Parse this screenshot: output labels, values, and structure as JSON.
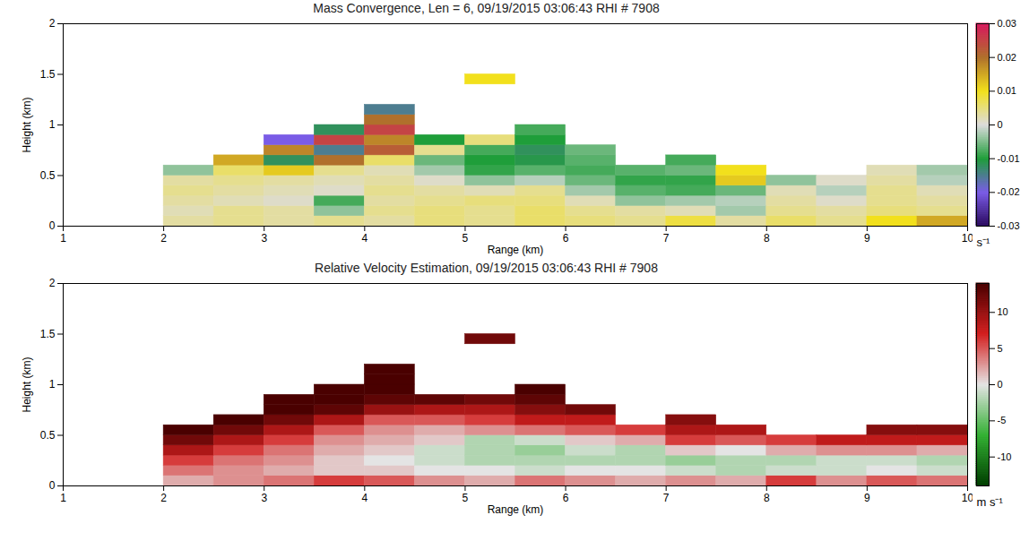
{
  "chart_data": [
    {
      "type": "heatmap",
      "title": "Mass Convergence, Len = 6, 09/19/2015 03:06:43 RHI # 7908",
      "x_label": "Range (km)",
      "y_label": "Height (km)",
      "xlim": [
        1,
        10
      ],
      "xticks": [
        1,
        2,
        3,
        4,
        5,
        6,
        7,
        8,
        9,
        10
      ],
      "ylim": [
        0,
        2
      ],
      "yticks": [
        0,
        0.5,
        1,
        1.5,
        2
      ],
      "x_edges": [
        2,
        2.5,
        3,
        3.5,
        4,
        4.5,
        5,
        5.5,
        6,
        6.5,
        7,
        7.5,
        8,
        8.5,
        9,
        9.5,
        10
      ],
      "y_edges": [
        0,
        0.1,
        0.2,
        0.3,
        0.4,
        0.5,
        0.6,
        0.7,
        0.8,
        0.9,
        1.0,
        1.1,
        1.2,
        1.3,
        1.4,
        1.5
      ],
      "cells": [
        [
          0.003,
          0.004,
          0.003,
          0.004,
          0.003,
          0.005,
          0.004,
          0.006,
          0.005,
          0.004,
          0.008,
          0.003,
          0.006,
          0.004,
          0.01,
          0.015
        ],
        [
          0.002,
          0.004,
          0.003,
          -0.004,
          0.004,
          0.005,
          0.004,
          0.006,
          0.004,
          0.003,
          0.002,
          -0.003,
          0.004,
          0.003,
          0.005,
          0.004
        ],
        [
          0.003,
          0.002,
          0.001,
          -0.008,
          0.003,
          0.004,
          0.005,
          0.005,
          0.002,
          -0.004,
          -0.003,
          -0.002,
          0.003,
          0.001,
          0.004,
          0.003
        ],
        [
          0.004,
          0.003,
          0.002,
          0.001,
          0.004,
          0.003,
          0.002,
          0.004,
          -0.003,
          -0.007,
          -0.008,
          -0.006,
          0.002,
          -0.002,
          0.004,
          0.002
        ],
        [
          0.003,
          0.004,
          0.003,
          0.002,
          0.003,
          0.001,
          -0.004,
          -0.002,
          -0.006,
          -0.009,
          -0.009,
          0.012,
          -0.004,
          0.001,
          0.003,
          -0.002
        ],
        [
          -0.004,
          0.006,
          0.012,
          0.004,
          0.002,
          -0.003,
          -0.009,
          -0.007,
          -0.008,
          -0.007,
          -0.006,
          0.01,
          null,
          null,
          0.002,
          -0.003
        ],
        [
          null,
          0.015,
          -0.012,
          0.02,
          0.006,
          -0.006,
          -0.01,
          -0.011,
          -0.007,
          null,
          -0.008,
          null,
          null,
          null,
          null,
          null
        ],
        [
          null,
          null,
          0.018,
          -0.015,
          0.022,
          0.004,
          -0.008,
          -0.012,
          -0.006,
          null,
          null,
          null,
          null,
          null,
          null,
          null
        ],
        [
          null,
          null,
          -0.02,
          0.025,
          0.018,
          -0.01,
          0.005,
          -0.01,
          null,
          null,
          null,
          null,
          null,
          null,
          null,
          null
        ],
        [
          null,
          null,
          null,
          -0.012,
          0.025,
          null,
          null,
          -0.008,
          null,
          null,
          null,
          null,
          null,
          null,
          null,
          null
        ],
        [
          null,
          null,
          null,
          null,
          0.02,
          null,
          null,
          null,
          null,
          null,
          null,
          null,
          null,
          null,
          null,
          null
        ],
        [
          null,
          null,
          null,
          null,
          -0.015,
          null,
          null,
          null,
          null,
          null,
          null,
          null,
          null,
          null,
          null,
          null
        ],
        [
          null,
          null,
          null,
          null,
          null,
          null,
          null,
          null,
          null,
          null,
          null,
          null,
          null,
          null,
          null,
          null
        ],
        [
          null,
          null,
          null,
          null,
          null,
          null,
          null,
          null,
          null,
          null,
          null,
          null,
          null,
          null,
          null,
          null
        ],
        [
          null,
          null,
          null,
          null,
          null,
          null,
          0.01,
          null,
          null,
          null,
          null,
          null,
          null,
          null,
          null,
          null
        ]
      ],
      "colorbar": {
        "range": [
          -0.03,
          0.03
        ],
        "ticks": [
          -0.03,
          -0.02,
          -0.01,
          0,
          0.01,
          0.02,
          0.03
        ],
        "label": "s⁻¹"
      }
    },
    {
      "type": "heatmap",
      "title": "Relative Velocity Estimation, 09/19/2015 03:06:43 RHI # 7908",
      "x_label": "Range (km)",
      "y_label": "Height (km)",
      "xlim": [
        1,
        10
      ],
      "xticks": [
        1,
        2,
        3,
        4,
        5,
        6,
        7,
        8,
        9,
        10
      ],
      "ylim": [
        0,
        2
      ],
      "yticks": [
        0,
        0.5,
        1,
        1.5,
        2
      ],
      "x_edges": [
        2,
        2.5,
        3,
        3.5,
        4,
        4.5,
        5,
        5.5,
        6,
        6.5,
        7,
        7.5,
        8,
        8.5,
        9,
        9.5,
        10
      ],
      "y_edges": [
        0,
        0.1,
        0.2,
        0.3,
        0.4,
        0.5,
        0.6,
        0.7,
        0.8,
        0.9,
        1.0,
        1.1,
        1.2,
        1.3,
        1.4,
        1.5
      ],
      "cells": [
        [
          2,
          3,
          4,
          6,
          5,
          3,
          2,
          4,
          3,
          2,
          3,
          2,
          6,
          3,
          5,
          4
        ],
        [
          4,
          3,
          2,
          1,
          1,
          0,
          0,
          -1,
          0,
          0,
          -1,
          -2,
          -1,
          -1,
          0,
          -1
        ],
        [
          6,
          4,
          3,
          1,
          0,
          -1,
          -2,
          -2,
          -2,
          -2,
          -3,
          -2,
          -2,
          -1,
          -1,
          -2
        ],
        [
          9,
          6,
          4,
          2,
          1,
          -1,
          -2,
          -3,
          -1,
          -2,
          1,
          0,
          2,
          3,
          3,
          2
        ],
        [
          12,
          9,
          6,
          3,
          2,
          1,
          -2,
          -1,
          1,
          2,
          6,
          5,
          6,
          8,
          8,
          8
        ],
        [
          14,
          12,
          9,
          5,
          3,
          2,
          3,
          4,
          5,
          6,
          9,
          9,
          null,
          null,
          11,
          11
        ],
        [
          null,
          14,
          12,
          9,
          5,
          5,
          6,
          8,
          8,
          null,
          11,
          null,
          null,
          null,
          null,
          null
        ],
        [
          null,
          null,
          14,
          13,
          10,
          9,
          9,
          11,
          12,
          null,
          null,
          null,
          null,
          null,
          null,
          null
        ],
        [
          null,
          null,
          14,
          14,
          13,
          13,
          12,
          13,
          null,
          null,
          null,
          null,
          null,
          null,
          null,
          null
        ],
        [
          null,
          null,
          null,
          14,
          14,
          null,
          null,
          14,
          null,
          null,
          null,
          null,
          null,
          null,
          null,
          null
        ],
        [
          null,
          null,
          null,
          null,
          14,
          null,
          null,
          null,
          null,
          null,
          null,
          null,
          null,
          null,
          null,
          null
        ],
        [
          null,
          null,
          null,
          null,
          14,
          null,
          null,
          null,
          null,
          null,
          null,
          null,
          null,
          null,
          null,
          null
        ],
        [
          null,
          null,
          null,
          null,
          null,
          null,
          null,
          null,
          null,
          null,
          null,
          null,
          null,
          null,
          null,
          null
        ],
        [
          null,
          null,
          null,
          null,
          null,
          null,
          null,
          null,
          null,
          null,
          null,
          null,
          null,
          null,
          null,
          null
        ],
        [
          null,
          null,
          null,
          null,
          null,
          null,
          12,
          null,
          null,
          null,
          null,
          null,
          null,
          null,
          null,
          null
        ]
      ],
      "colorbar": {
        "range": [
          -14,
          14
        ],
        "ticks": [
          -10,
          -5,
          0,
          5,
          10
        ],
        "label": "m s⁻¹"
      }
    }
  ]
}
